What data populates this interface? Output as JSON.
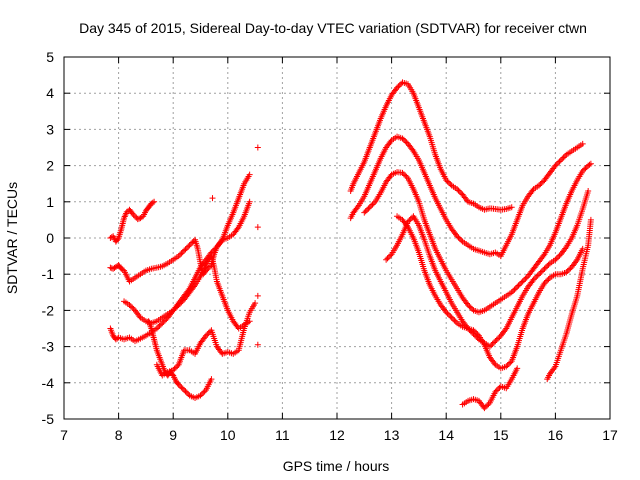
{
  "chart_data": {
    "type": "scatter",
    "title": "Day 345 of 2015, Sidereal Day-to-day VTEC variation (SDTVAR) for receiver ctwn",
    "xlabel": "GPS time / hours",
    "ylabel": "SDTVAR / TECUs",
    "xlim": [
      7,
      17
    ],
    "ylim": [
      -5,
      5
    ],
    "xticks": [
      7,
      8,
      9,
      10,
      11,
      12,
      13,
      14,
      15,
      16,
      17
    ],
    "yticks": [
      -5,
      -4,
      -3,
      -2,
      -1,
      0,
      1,
      2,
      3,
      4,
      5
    ],
    "grid": true,
    "marker": "+",
    "marker_color": "#ff0000",
    "series": [
      {
        "name": "arc-1",
        "x": [
          7.85,
          7.9,
          7.95,
          8.0,
          8.05,
          8.1,
          8.15,
          8.2,
          8.25,
          8.3,
          8.35,
          8.4,
          8.45,
          8.5,
          8.55,
          8.6,
          8.65
        ],
        "y": [
          0.0,
          0.05,
          -0.1,
          0.0,
          0.25,
          0.55,
          0.72,
          0.78,
          0.68,
          0.6,
          0.52,
          0.55,
          0.6,
          0.75,
          0.85,
          0.95,
          1.0
        ]
      },
      {
        "name": "arc-2",
        "x": [
          7.85,
          7.9,
          7.95,
          8.0,
          8.05,
          8.1,
          8.2,
          8.3,
          8.4,
          8.5,
          8.6,
          8.7,
          8.8,
          8.9,
          9.0,
          9.1,
          9.2,
          9.3,
          9.4,
          9.45,
          9.5,
          9.55,
          9.6,
          9.7,
          9.75,
          9.8,
          9.85,
          9.9,
          9.95,
          10.0,
          10.1,
          10.2,
          10.3,
          10.4
        ],
        "y": [
          -0.82,
          -0.85,
          -0.8,
          -0.75,
          -0.85,
          -0.9,
          -1.2,
          -1.1,
          -1.0,
          -0.9,
          -0.85,
          -0.82,
          -0.78,
          -0.7,
          -0.6,
          -0.5,
          -0.35,
          -0.2,
          -0.05,
          -0.3,
          -0.7,
          -1.0,
          -0.9,
          -0.75,
          -0.45,
          -0.25,
          -0.15,
          -0.05,
          0.15,
          0.35,
          0.7,
          1.1,
          1.5,
          1.75
        ]
      },
      {
        "name": "arc-3",
        "x": [
          7.85,
          7.9,
          7.95,
          8.0,
          8.1,
          8.2,
          8.3,
          8.4,
          8.5,
          8.6,
          8.7,
          8.8,
          8.9,
          9.0,
          9.1,
          9.2,
          9.3,
          9.4,
          9.5,
          9.6,
          9.7,
          9.8,
          9.9,
          10.0,
          10.1,
          10.2,
          10.3,
          10.4
        ],
        "y": [
          -2.5,
          -2.7,
          -2.8,
          -2.75,
          -2.8,
          -2.75,
          -2.85,
          -2.78,
          -2.7,
          -2.6,
          -2.5,
          -2.35,
          -2.2,
          -2.0,
          -1.8,
          -1.6,
          -1.4,
          -1.1,
          -0.8,
          -0.6,
          -0.4,
          -0.25,
          -0.05,
          0.0,
          0.1,
          0.3,
          0.6,
          1.0
        ]
      },
      {
        "name": "arc-4",
        "x": [
          8.1,
          8.2,
          8.3,
          8.4,
          8.5,
          8.6,
          8.7,
          8.8,
          8.9,
          9.0,
          9.1,
          9.2,
          9.3,
          9.4,
          9.5,
          9.6,
          9.65,
          9.7,
          9.75,
          9.8,
          9.9,
          10.0,
          10.1,
          10.2,
          10.3,
          10.4
        ],
        "y": [
          -1.75,
          -1.85,
          -2.0,
          -2.2,
          -2.3,
          -2.35,
          -2.3,
          -2.2,
          -2.1,
          -2.0,
          -1.85,
          -1.7,
          -1.5,
          -1.3,
          -1.05,
          -0.75,
          -0.6,
          -0.5,
          -0.8,
          -1.2,
          -1.6,
          -2.0,
          -2.3,
          -2.5,
          -2.4,
          -2.3
        ]
      },
      {
        "name": "arc-5",
        "x": [
          8.7,
          8.8,
          8.9,
          9.0,
          9.1,
          9.2,
          9.3,
          9.4,
          9.5,
          9.6,
          9.7,
          9.8,
          9.9,
          10.0,
          10.1,
          10.2,
          10.3,
          10.4,
          10.5
        ],
        "y": [
          -3.5,
          -3.8,
          -3.7,
          -3.65,
          -3.5,
          -3.1,
          -3.1,
          -3.2,
          -2.9,
          -2.7,
          -2.55,
          -3.0,
          -3.2,
          -3.15,
          -3.2,
          -3.1,
          -2.5,
          -2.05,
          -1.8
        ]
      },
      {
        "name": "arc-6",
        "x": [
          8.55,
          8.6,
          8.65,
          8.7,
          8.75,
          8.8,
          8.85,
          8.9,
          8.95,
          9.0,
          9.05,
          9.1,
          9.2,
          9.3,
          9.4,
          9.5,
          9.6,
          9.7
        ],
        "y": [
          -2.3,
          -2.5,
          -2.8,
          -3.1,
          -3.3,
          -3.5,
          -3.7,
          -3.8,
          -3.7,
          -3.8,
          -3.95,
          -4.05,
          -4.2,
          -4.35,
          -4.42,
          -4.35,
          -4.2,
          -3.9
        ]
      },
      {
        "name": "isolated",
        "x": [
          9.72,
          10.55,
          10.55,
          10.55,
          10.55
        ],
        "y": [
          1.1,
          2.5,
          0.3,
          -1.6,
          -2.95
        ]
      },
      {
        "name": "arc-7",
        "x": [
          12.25,
          12.3,
          12.4,
          12.5,
          12.6,
          12.7,
          12.8,
          12.9,
          13.0,
          13.1,
          13.2,
          13.3,
          13.4,
          13.5,
          13.6,
          13.7,
          13.8,
          13.9,
          14.0,
          14.1,
          14.2,
          14.3,
          14.4,
          14.5,
          14.6,
          14.7,
          14.8,
          14.9,
          15.0,
          15.1,
          15.2
        ],
        "y": [
          1.3,
          1.5,
          1.8,
          2.1,
          2.5,
          2.9,
          3.3,
          3.65,
          3.95,
          4.15,
          4.3,
          4.25,
          4.0,
          3.6,
          3.2,
          2.8,
          2.3,
          1.9,
          1.6,
          1.45,
          1.35,
          1.2,
          1.0,
          0.95,
          0.85,
          0.78,
          0.82,
          0.8,
          0.78,
          0.8,
          0.85
        ]
      },
      {
        "name": "arc-8",
        "x": [
          12.25,
          12.3,
          12.4,
          12.5,
          12.6,
          12.7,
          12.8,
          12.9,
          13.0,
          13.1,
          13.2,
          13.3,
          13.4,
          13.5,
          13.6,
          13.7,
          13.8,
          13.9,
          14.0,
          14.1,
          14.2,
          14.3,
          14.4,
          14.5,
          14.6,
          14.7,
          14.8,
          14.9,
          15.0,
          15.1,
          15.2,
          15.3,
          15.4,
          15.5,
          15.6,
          15.7,
          15.8,
          15.9,
          16.0,
          16.1,
          16.2,
          16.3,
          16.4,
          16.5
        ],
        "y": [
          0.55,
          0.7,
          0.9,
          1.15,
          1.5,
          1.85,
          2.2,
          2.5,
          2.7,
          2.8,
          2.75,
          2.6,
          2.4,
          2.15,
          1.8,
          1.45,
          1.1,
          0.8,
          0.5,
          0.25,
          0.05,
          -0.1,
          -0.2,
          -0.3,
          -0.35,
          -0.4,
          -0.45,
          -0.4,
          -0.5,
          -0.2,
          0.1,
          0.5,
          0.9,
          1.15,
          1.35,
          1.45,
          1.6,
          1.8,
          2.0,
          2.15,
          2.3,
          2.4,
          2.5,
          2.6
        ]
      },
      {
        "name": "arc-9",
        "x": [
          12.5,
          12.6,
          12.7,
          12.8,
          12.9,
          13.0,
          13.1,
          13.2,
          13.3,
          13.4,
          13.5,
          13.6,
          13.7,
          13.8,
          13.9,
          14.0,
          14.1,
          14.2,
          14.3,
          14.4,
          14.5,
          14.6,
          14.7,
          14.8,
          14.9,
          15.0,
          15.1,
          15.2,
          15.3,
          15.4,
          15.5,
          15.6,
          15.7,
          15.8,
          15.9,
          16.0,
          16.1,
          16.2,
          16.3,
          16.4,
          16.5,
          16.6,
          16.65
        ],
        "y": [
          0.7,
          0.85,
          1.0,
          1.25,
          1.55,
          1.75,
          1.82,
          1.8,
          1.65,
          1.35,
          1.0,
          0.5,
          0.1,
          -0.3,
          -0.6,
          -0.9,
          -1.15,
          -1.4,
          -1.65,
          -1.85,
          -2.0,
          -2.05,
          -2.0,
          -1.9,
          -1.8,
          -1.7,
          -1.6,
          -1.5,
          -1.35,
          -1.2,
          -1.05,
          -0.85,
          -0.65,
          -0.45,
          -0.2,
          0.15,
          0.55,
          0.95,
          1.3,
          1.6,
          1.85,
          2.0,
          2.05
        ]
      },
      {
        "name": "arc-10",
        "x": [
          12.9,
          13.0,
          13.1,
          13.2,
          13.3,
          13.4,
          13.5,
          13.6,
          13.7,
          13.8,
          13.9,
          14.0,
          14.1,
          14.2,
          14.3,
          14.4,
          14.5,
          14.6,
          14.7,
          14.8,
          14.9,
          15.0,
          15.1,
          15.2,
          15.3,
          15.4,
          15.5,
          15.6,
          15.7,
          15.8,
          15.9,
          16.0,
          16.1,
          16.2,
          16.3,
          16.4,
          16.5,
          16.6
        ],
        "y": [
          -0.6,
          -0.45,
          -0.2,
          0.1,
          0.45,
          0.6,
          0.35,
          -0.05,
          -0.5,
          -0.9,
          -1.2,
          -1.5,
          -1.8,
          -2.05,
          -2.3,
          -2.5,
          -2.65,
          -2.8,
          -2.9,
          -3.0,
          -2.85,
          -2.7,
          -2.5,
          -2.2,
          -1.9,
          -1.6,
          -1.35,
          -1.15,
          -1.0,
          -0.85,
          -0.7,
          -0.6,
          -0.45,
          -0.25,
          0.0,
          0.35,
          0.8,
          1.3
        ]
      },
      {
        "name": "arc-11",
        "x": [
          13.1,
          13.2,
          13.3,
          13.4,
          13.5,
          13.6,
          13.7,
          13.8,
          13.9,
          14.0,
          14.1,
          14.2,
          14.3,
          14.4,
          14.5,
          14.6,
          14.7,
          14.8,
          14.9,
          15.0,
          15.1,
          15.2,
          15.3,
          15.4,
          15.5,
          15.6,
          15.7,
          15.8,
          15.9,
          16.0,
          16.1,
          16.2,
          16.3,
          16.4,
          16.5
        ],
        "y": [
          0.6,
          0.5,
          0.3,
          0.0,
          -0.4,
          -0.9,
          -1.3,
          -1.6,
          -1.85,
          -2.05,
          -2.2,
          -2.35,
          -2.45,
          -2.5,
          -2.55,
          -2.7,
          -2.95,
          -3.3,
          -3.5,
          -3.6,
          -3.55,
          -3.4,
          -3.0,
          -2.5,
          -2.1,
          -1.8,
          -1.5,
          -1.25,
          -1.1,
          -1.0,
          -1.0,
          -0.95,
          -0.8,
          -0.6,
          -0.3
        ]
      },
      {
        "name": "arc-12",
        "x": [
          14.3,
          14.4,
          14.5,
          14.6,
          14.7,
          14.8,
          14.9,
          15.0,
          15.1,
          15.2,
          15.3
        ],
        "y": [
          -4.6,
          -4.5,
          -4.45,
          -4.5,
          -4.7,
          -4.55,
          -4.25,
          -4.1,
          -4.15,
          -3.9,
          -3.6
        ]
      },
      {
        "name": "arc-13",
        "x": [
          15.85,
          15.9,
          16.0,
          16.1,
          16.2,
          16.3,
          16.4,
          16.5,
          16.6,
          16.65
        ],
        "y": [
          -3.9,
          -3.75,
          -3.55,
          -3.1,
          -2.65,
          -2.1,
          -1.6,
          -0.85,
          -0.2,
          0.5
        ]
      }
    ]
  }
}
